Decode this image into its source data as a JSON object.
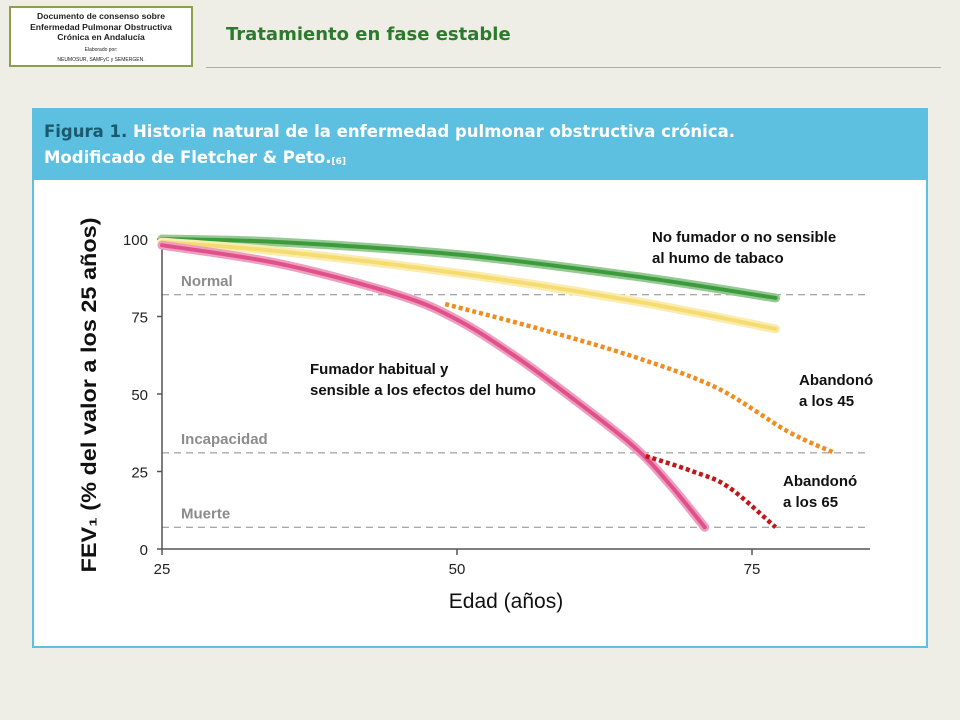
{
  "header": {
    "logo_lines": [
      "Documento de consenso sobre",
      "Enfermedad Pulmonar Obstructiva",
      "Crónica en Andalucía"
    ],
    "logo_credit": [
      "Elaborado por:",
      "NEUMOSUR, SAMFyC y SEMERGEN."
    ],
    "title": "Tratamiento en fase estable"
  },
  "figure": {
    "label": "Figura 1.",
    "caption_line1": "Historia natural de la enfermedad pulmonar obstructiva crónica.",
    "caption_line2": "Modificado de Fletcher & Peto.",
    "reference": "[6]"
  },
  "chart_data": {
    "type": "line",
    "xlabel": "Edad (años)",
    "ylabel": "FEV₁ (% del valor a los 25 años)",
    "xlim": [
      25,
      85
    ],
    "ylim": [
      0,
      100
    ],
    "x_ticks": [
      25,
      50,
      75
    ],
    "y_ticks": [
      0,
      25,
      50,
      75,
      100
    ],
    "thresholds": [
      {
        "label": "Normal",
        "y": 82
      },
      {
        "label": "Incapacidad",
        "y": 31
      },
      {
        "label": "Muerte",
        "y": 7
      }
    ],
    "series": [
      {
        "name": "No fumador o no sensible al humo de tabaco",
        "color": "#3c9c3c",
        "style": "solid",
        "points": [
          [
            25,
            100
          ],
          [
            35,
            99
          ],
          [
            50,
            95
          ],
          [
            65,
            88
          ],
          [
            77,
            81
          ]
        ]
      },
      {
        "name": "",
        "color": "#f5dc70",
        "style": "solid",
        "points": [
          [
            25,
            99
          ],
          [
            35,
            96
          ],
          [
            50,
            89
          ],
          [
            65,
            80
          ],
          [
            77,
            71
          ]
        ]
      },
      {
        "name": "Fumador habitual y sensible a los efectos del humo",
        "color": "#e0508a",
        "style": "solid",
        "points": [
          [
            25,
            98
          ],
          [
            35,
            92
          ],
          [
            45,
            82
          ],
          [
            50,
            74
          ],
          [
            55,
            62
          ],
          [
            60,
            48
          ],
          [
            65,
            33
          ],
          [
            68,
            21
          ],
          [
            71,
            7
          ]
        ]
      },
      {
        "name": "Abandonó a los 45",
        "color": "#f08c20",
        "style": "dotted",
        "points": [
          [
            49,
            79
          ],
          [
            57,
            71
          ],
          [
            65,
            62
          ],
          [
            72,
            52
          ],
          [
            78,
            38
          ],
          [
            82,
            31
          ]
        ]
      },
      {
        "name": "Abandonó a los 65",
        "color": "#c01818",
        "style": "dotted",
        "points": [
          [
            66,
            30
          ],
          [
            70,
            25
          ],
          [
            73,
            20
          ],
          [
            77,
            7
          ]
        ]
      }
    ],
    "annotations": [
      {
        "lines": [
          "No fumador o no sensible",
          "al humo de tabaco"
        ]
      },
      {
        "lines": [
          "Fumador habitual y",
          "sensible a los efectos del humo"
        ]
      },
      {
        "lines": [
          "Abandonó",
          "a los 45"
        ]
      },
      {
        "lines": [
          "Abandonó",
          "a los 65"
        ]
      }
    ]
  }
}
